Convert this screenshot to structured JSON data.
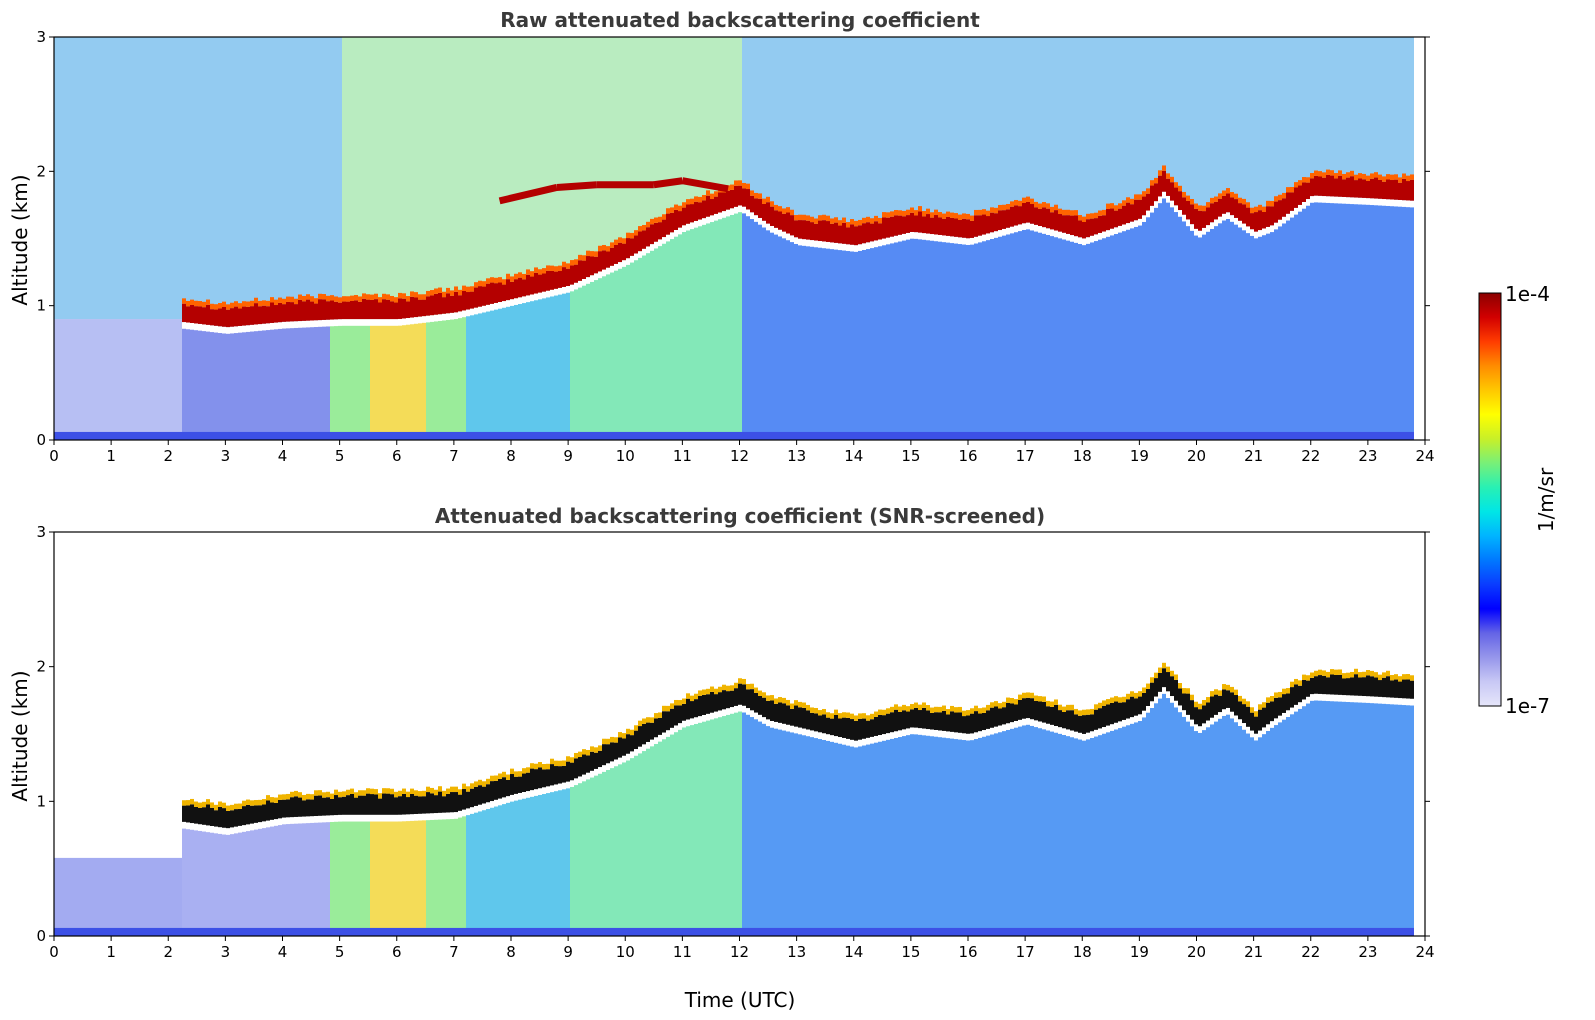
{
  "chart_data": [
    {
      "type": "heatmap",
      "title": "Raw attenuated backscattering coefficient",
      "xlabel": "",
      "ylabel": "Altitude (km)",
      "xlim": [
        0,
        24
      ],
      "ylim": [
        0,
        3
      ],
      "xticks": [
        "0",
        "1",
        "2",
        "3",
        "4",
        "5",
        "6",
        "7",
        "8",
        "9",
        "10",
        "11",
        "12",
        "13",
        "14",
        "15",
        "16",
        "17",
        "18",
        "19",
        "20",
        "21",
        "22",
        "23",
        "24"
      ],
      "yticks": [
        "0",
        "1",
        "2",
        "3"
      ],
      "cloud_base_km": [
        [
          2.2,
          0.88
        ],
        [
          3,
          0.84
        ],
        [
          4,
          0.88
        ],
        [
          5,
          0.9
        ],
        [
          6,
          0.9
        ],
        [
          7,
          0.95
        ],
        [
          8,
          1.05
        ],
        [
          9,
          1.15
        ],
        [
          10,
          1.35
        ],
        [
          11,
          1.6
        ],
        [
          12,
          1.75
        ],
        [
          12.5,
          1.6
        ],
        [
          13,
          1.5
        ],
        [
          14,
          1.45
        ],
        [
          15,
          1.55
        ],
        [
          16,
          1.5
        ],
        [
          17,
          1.62
        ],
        [
          18,
          1.5
        ],
        [
          19,
          1.65
        ],
        [
          19.4,
          1.85
        ],
        [
          20,
          1.55
        ],
        [
          20.5,
          1.7
        ],
        [
          21,
          1.55
        ],
        [
          21.3,
          1.6
        ],
        [
          22,
          1.82
        ],
        [
          23,
          1.8
        ],
        [
          23.8,
          1.78
        ]
      ],
      "upper_layer_km": [
        [
          7.8,
          1.78
        ],
        [
          8.8,
          1.88
        ],
        [
          9.5,
          1.9
        ],
        [
          10.5,
          1.9
        ],
        [
          11,
          1.93
        ],
        [
          11.8,
          1.87
        ]
      ]
    },
    {
      "type": "heatmap",
      "title": "Attenuated backscattering coefficient (SNR-screened)",
      "xlabel": "Time (UTC)",
      "ylabel": "Altitude (km)",
      "xlim": [
        0,
        24
      ],
      "ylim": [
        0,
        3
      ],
      "xticks": [
        "0",
        "1",
        "2",
        "3",
        "4",
        "5",
        "6",
        "7",
        "8",
        "9",
        "10",
        "11",
        "12",
        "13",
        "14",
        "15",
        "16",
        "17",
        "18",
        "19",
        "20",
        "21",
        "22",
        "23",
        "24"
      ],
      "yticks": [
        "0",
        "1",
        "2",
        "3"
      ],
      "cloud_base_km": [
        [
          2.2,
          0.85
        ],
        [
          3,
          0.8
        ],
        [
          4,
          0.88
        ],
        [
          5,
          0.9
        ],
        [
          6,
          0.9
        ],
        [
          7,
          0.92
        ],
        [
          8,
          1.05
        ],
        [
          9,
          1.15
        ],
        [
          10,
          1.35
        ],
        [
          11,
          1.6
        ],
        [
          12,
          1.72
        ],
        [
          12.5,
          1.6
        ],
        [
          13,
          1.55
        ],
        [
          14,
          1.45
        ],
        [
          15,
          1.55
        ],
        [
          16,
          1.5
        ],
        [
          17,
          1.62
        ],
        [
          18,
          1.5
        ],
        [
          19,
          1.65
        ],
        [
          19.4,
          1.85
        ],
        [
          20,
          1.55
        ],
        [
          20.5,
          1.7
        ],
        [
          21,
          1.5
        ],
        [
          21.3,
          1.6
        ],
        [
          22,
          1.8
        ],
        [
          23,
          1.78
        ],
        [
          23.8,
          1.76
        ]
      ]
    }
  ],
  "colorbar": {
    "label": "1/m/sr",
    "max_label": "1e-4",
    "min_label": "1e-7",
    "colors": [
      "#e6e6fa",
      "#c8c8f5",
      "#9696eb",
      "#6464e6",
      "#0000ff",
      "#0a3cff",
      "#0078ff",
      "#00b4ff",
      "#00e6e6",
      "#28f0b4",
      "#78f078",
      "#c8f028",
      "#ffff00",
      "#ffc800",
      "#ff8c00",
      "#ff3c00",
      "#d20000",
      "#8b0000"
    ]
  }
}
